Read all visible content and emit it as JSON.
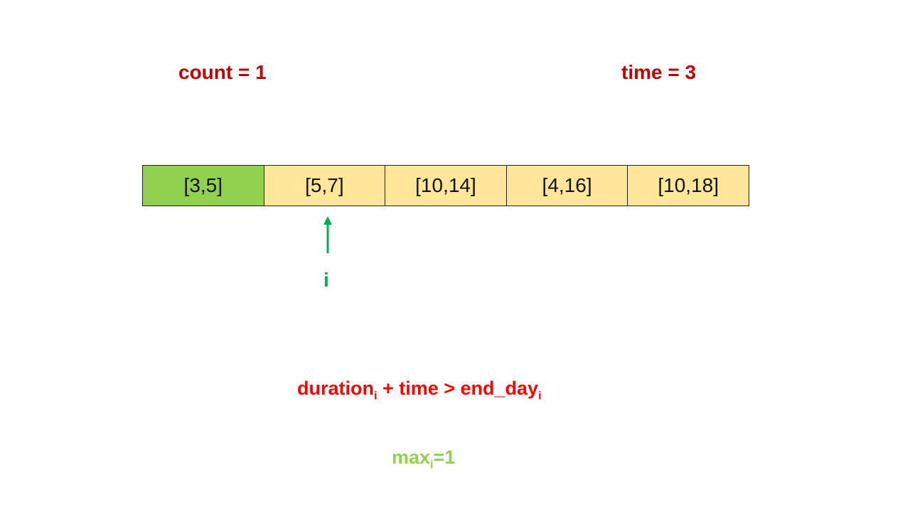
{
  "header": {
    "count_text": "count = 1",
    "time_text": "time = 3"
  },
  "array": {
    "cells": [
      {
        "text": "[3,5]",
        "state": "done"
      },
      {
        "text": "[5,7]",
        "state": "pending"
      },
      {
        "text": "[10,14]",
        "state": "pending"
      },
      {
        "text": "[4,16]",
        "state": "pending"
      },
      {
        "text": "[10,18]",
        "state": "pending"
      }
    ],
    "pointer_index": 1,
    "pointer_label": "i"
  },
  "condition": {
    "part1": "duration",
    "sub1": "i",
    "part2": " + time > end_day",
    "sub2": "i"
  },
  "max": {
    "prefix": "max",
    "sub": "i",
    "suffix": "=1"
  },
  "colors": {
    "done_cell": "#92d050",
    "pending_cell": "#ffe699",
    "header_text": "#c00000",
    "pointer": "#00b050",
    "condition_text": "#ff0000",
    "max_text": "#92d050"
  }
}
